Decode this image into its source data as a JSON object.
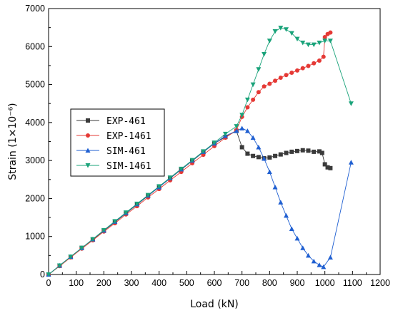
{
  "chart_data": {
    "type": "line",
    "xlabel": "Load (kN)",
    "ylabel": "Strain (1×10⁻⁶)",
    "xlim": [
      0,
      1200
    ],
    "ylim": [
      0,
      7000
    ],
    "x_ticks": [
      0,
      100,
      200,
      300,
      400,
      500,
      600,
      700,
      800,
      900,
      1000,
      1100,
      1200
    ],
    "y_ticks": [
      0,
      1000,
      2000,
      3000,
      4000,
      5000,
      6000,
      7000
    ],
    "grid": false,
    "legend": {
      "position": "left-middle"
    },
    "series": [
      {
        "name": "EXP-461",
        "color": "#3a3a3a",
        "marker": "square",
        "points": [
          [
            0,
            0
          ],
          [
            40,
            230
          ],
          [
            80,
            460
          ],
          [
            120,
            700
          ],
          [
            160,
            920
          ],
          [
            200,
            1150
          ],
          [
            240,
            1380
          ],
          [
            280,
            1610
          ],
          [
            320,
            1840
          ],
          [
            360,
            2070
          ],
          [
            400,
            2300
          ],
          [
            440,
            2530
          ],
          [
            480,
            2760
          ],
          [
            520,
            2990
          ],
          [
            560,
            3220
          ],
          [
            600,
            3450
          ],
          [
            640,
            3620
          ],
          [
            680,
            3780
          ],
          [
            700,
            3350
          ],
          [
            720,
            3180
          ],
          [
            740,
            3120
          ],
          [
            760,
            3090
          ],
          [
            780,
            3060
          ],
          [
            800,
            3080
          ],
          [
            820,
            3120
          ],
          [
            840,
            3160
          ],
          [
            860,
            3200
          ],
          [
            880,
            3230
          ],
          [
            900,
            3250
          ],
          [
            920,
            3270
          ],
          [
            940,
            3260
          ],
          [
            960,
            3230
          ],
          [
            980,
            3240
          ],
          [
            990,
            3200
          ],
          [
            1000,
            2900
          ],
          [
            1010,
            2820
          ],
          [
            1020,
            2800
          ]
        ]
      },
      {
        "name": "EXP-1461",
        "color": "#e53935",
        "marker": "circle",
        "points": [
          [
            0,
            0
          ],
          [
            40,
            220
          ],
          [
            80,
            450
          ],
          [
            120,
            680
          ],
          [
            160,
            900
          ],
          [
            200,
            1130
          ],
          [
            240,
            1350
          ],
          [
            280,
            1580
          ],
          [
            320,
            1800
          ],
          [
            360,
            2030
          ],
          [
            400,
            2250
          ],
          [
            440,
            2480
          ],
          [
            480,
            2700
          ],
          [
            520,
            2930
          ],
          [
            560,
            3150
          ],
          [
            600,
            3380
          ],
          [
            640,
            3600
          ],
          [
            680,
            3800
          ],
          [
            700,
            4150
          ],
          [
            720,
            4400
          ],
          [
            740,
            4600
          ],
          [
            760,
            4800
          ],
          [
            780,
            4950
          ],
          [
            800,
            5020
          ],
          [
            820,
            5100
          ],
          [
            840,
            5180
          ],
          [
            860,
            5250
          ],
          [
            880,
            5310
          ],
          [
            900,
            5370
          ],
          [
            920,
            5430
          ],
          [
            940,
            5490
          ],
          [
            960,
            5560
          ],
          [
            980,
            5630
          ],
          [
            995,
            5730
          ],
          [
            1000,
            6250
          ],
          [
            1010,
            6330
          ],
          [
            1020,
            6370
          ]
        ]
      },
      {
        "name": "SIM-461",
        "color": "#1f5fd1",
        "marker": "triangle-up",
        "points": [
          [
            0,
            0
          ],
          [
            40,
            240
          ],
          [
            80,
            470
          ],
          [
            120,
            700
          ],
          [
            160,
            930
          ],
          [
            200,
            1160
          ],
          [
            240,
            1390
          ],
          [
            280,
            1620
          ],
          [
            320,
            1850
          ],
          [
            360,
            2080
          ],
          [
            400,
            2300
          ],
          [
            440,
            2540
          ],
          [
            480,
            2770
          ],
          [
            520,
            3000
          ],
          [
            560,
            3230
          ],
          [
            600,
            3450
          ],
          [
            640,
            3650
          ],
          [
            680,
            3780
          ],
          [
            700,
            3850
          ],
          [
            720,
            3780
          ],
          [
            740,
            3600
          ],
          [
            760,
            3350
          ],
          [
            780,
            3050
          ],
          [
            800,
            2700
          ],
          [
            820,
            2300
          ],
          [
            840,
            1900
          ],
          [
            860,
            1550
          ],
          [
            880,
            1200
          ],
          [
            900,
            950
          ],
          [
            920,
            700
          ],
          [
            940,
            500
          ],
          [
            960,
            350
          ],
          [
            980,
            250
          ],
          [
            995,
            200
          ],
          [
            1020,
            450
          ],
          [
            1095,
            2950
          ]
        ]
      },
      {
        "name": "SIM-1461",
        "color": "#1aa37a",
        "marker": "triangle-down",
        "points": [
          [
            0,
            0
          ],
          [
            40,
            235
          ],
          [
            80,
            470
          ],
          [
            120,
            700
          ],
          [
            160,
            930
          ],
          [
            200,
            1165
          ],
          [
            240,
            1400
          ],
          [
            280,
            1630
          ],
          [
            320,
            1860
          ],
          [
            360,
            2090
          ],
          [
            400,
            2320
          ],
          [
            440,
            2550
          ],
          [
            480,
            2780
          ],
          [
            520,
            3010
          ],
          [
            560,
            3240
          ],
          [
            600,
            3470
          ],
          [
            640,
            3700
          ],
          [
            680,
            3900
          ],
          [
            700,
            4200
          ],
          [
            720,
            4600
          ],
          [
            740,
            5000
          ],
          [
            760,
            5400
          ],
          [
            780,
            5800
          ],
          [
            800,
            6150
          ],
          [
            820,
            6400
          ],
          [
            840,
            6490
          ],
          [
            860,
            6450
          ],
          [
            880,
            6350
          ],
          [
            900,
            6200
          ],
          [
            920,
            6100
          ],
          [
            940,
            6050
          ],
          [
            960,
            6050
          ],
          [
            980,
            6100
          ],
          [
            1000,
            6150
          ],
          [
            1020,
            6150
          ],
          [
            1095,
            4500
          ]
        ]
      }
    ]
  }
}
